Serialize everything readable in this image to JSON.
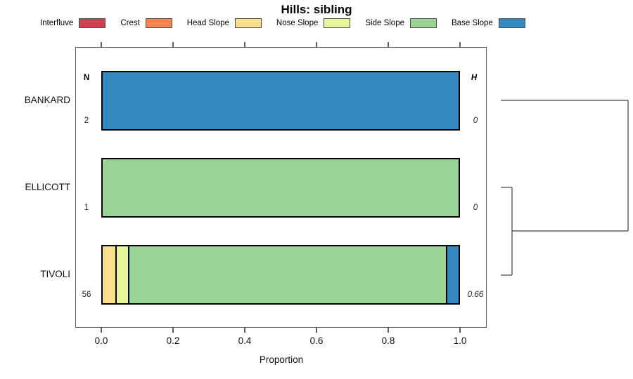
{
  "title": "Hills: sibling",
  "axis": {
    "xlabel": "Proportion",
    "xlim": [
      0,
      1
    ],
    "x_ticks": [
      {
        "label": "0.0",
        "value": 0.0
      },
      {
        "label": "0.2",
        "value": 0.2
      },
      {
        "label": "0.4",
        "value": 0.4
      },
      {
        "label": "0.6",
        "value": 0.6
      },
      {
        "label": "0.8",
        "value": 0.8
      },
      {
        "label": "1.0",
        "value": 1.0
      }
    ]
  },
  "columns": {
    "n_header": "N",
    "h_header": "H"
  },
  "chart_data": {
    "type": "bar",
    "subtype": "horizontal-stacked-proportion",
    "title": "Hills: sibling",
    "xlabel": "Proportion",
    "xlim": [
      0,
      1
    ],
    "grid": false,
    "legend_position": "top",
    "categories": [
      {
        "label": "Interfluve",
        "color": "#CE4150"
      },
      {
        "label": "Crest",
        "color": "#F6854F"
      },
      {
        "label": "Head Slope",
        "color": "#FBDE8E"
      },
      {
        "label": "Nose Slope",
        "color": "#E7F59B"
      },
      {
        "label": "Side Slope",
        "color": "#99D494"
      },
      {
        "label": "Base Slope",
        "color": "#3388BD"
      }
    ],
    "rows": [
      {
        "label": "BANKARD",
        "n": "2",
        "h": "0",
        "values": [
          0,
          0,
          0,
          0,
          0,
          1.0
        ]
      },
      {
        "label": "ELLICOTT",
        "n": "1",
        "h": "0",
        "values": [
          0,
          0,
          0,
          0,
          1.0,
          0
        ]
      },
      {
        "label": "TIVOLI",
        "n": "56",
        "h": "0.66",
        "values": [
          0,
          0,
          0.036,
          0.036,
          0.893,
          0.035
        ]
      }
    ],
    "dendrogram": {
      "structure": "ELLICOTT and TIVOLI cluster first at low height, then join BANKARD at the root",
      "segments": [
        {
          "x1": 712,
          "y1": 143,
          "x2": 893,
          "y2": 143
        },
        {
          "x1": 893,
          "y1": 143,
          "x2": 893,
          "y2": 329
        },
        {
          "x1": 728,
          "y1": 329,
          "x2": 893,
          "y2": 329
        },
        {
          "x1": 728,
          "y1": 267,
          "x2": 728,
          "y2": 392
        },
        {
          "x1": 712,
          "y1": 267,
          "x2": 728,
          "y2": 267
        },
        {
          "x1": 712,
          "y1": 392,
          "x2": 728,
          "y2": 392
        }
      ]
    }
  }
}
